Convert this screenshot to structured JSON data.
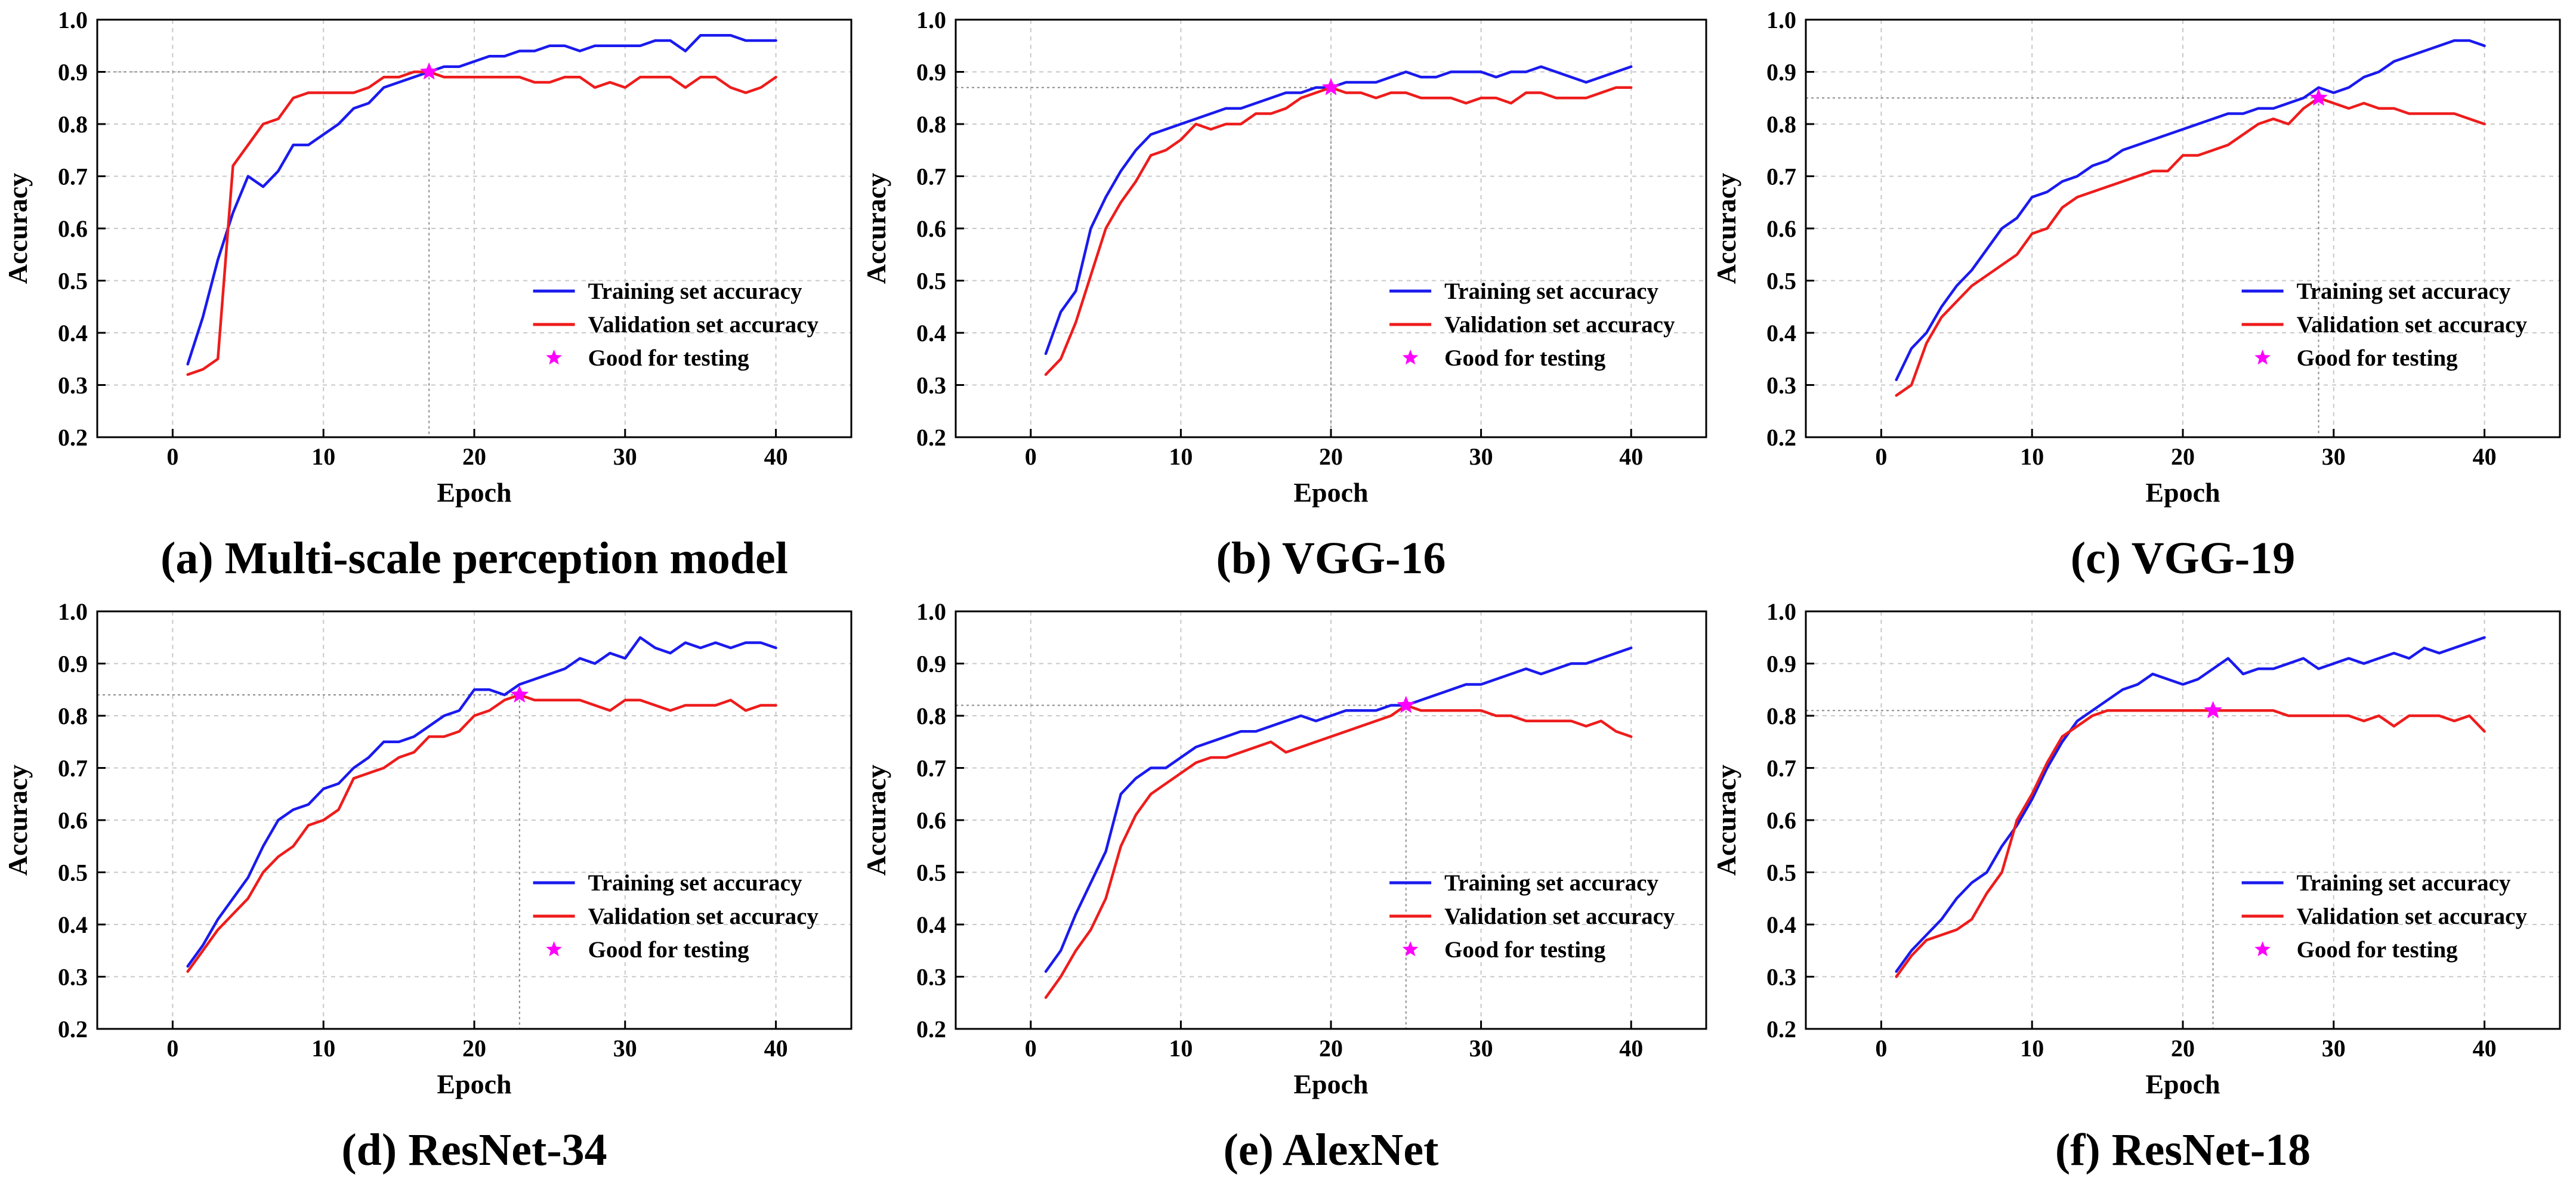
{
  "colors": {
    "training": "#1a1aee",
    "validation": "#ee1c1c",
    "best": "#ff00ff"
  },
  "legend": {
    "training_label": "Training set accuracy",
    "validation_label": "Validation set accuracy",
    "best_label": "Good for testing"
  },
  "chart_data": [
    {
      "type": "line",
      "title": "(a) Multi-scale perception model",
      "xlabel": "Epoch",
      "ylabel": "Accuracy",
      "xlim": [
        -5,
        45
      ],
      "ylim": [
        0.2,
        1.0
      ],
      "xticks": [
        0,
        10,
        20,
        30,
        40
      ],
      "yticks": [
        0.2,
        0.3,
        0.4,
        0.5,
        0.6,
        0.7,
        0.8,
        0.9,
        1.0
      ],
      "grid": true,
      "legend_position": "bottom-right",
      "x": [
        1,
        2,
        3,
        4,
        5,
        6,
        7,
        8,
        9,
        10,
        11,
        12,
        13,
        14,
        15,
        16,
        17,
        18,
        19,
        20,
        21,
        22,
        23,
        24,
        25,
        26,
        27,
        28,
        29,
        30,
        31,
        32,
        33,
        34,
        35,
        36,
        37,
        38,
        39,
        40
      ],
      "series": [
        {
          "name": "Training set accuracy",
          "values": [
            0.34,
            0.43,
            0.54,
            0.63,
            0.7,
            0.68,
            0.71,
            0.76,
            0.76,
            0.78,
            0.8,
            0.83,
            0.84,
            0.87,
            0.88,
            0.89,
            0.9,
            0.91,
            0.91,
            0.92,
            0.93,
            0.93,
            0.94,
            0.94,
            0.95,
            0.95,
            0.94,
            0.95,
            0.95,
            0.95,
            0.95,
            0.96,
            0.96,
            0.94,
            0.97,
            0.97,
            0.97,
            0.96,
            0.96,
            0.96
          ]
        },
        {
          "name": "Validation set accuracy",
          "values": [
            0.32,
            0.33,
            0.35,
            0.72,
            0.76,
            0.8,
            0.81,
            0.85,
            0.86,
            0.86,
            0.86,
            0.86,
            0.87,
            0.89,
            0.89,
            0.9,
            0.9,
            0.89,
            0.89,
            0.89,
            0.89,
            0.89,
            0.89,
            0.88,
            0.88,
            0.89,
            0.89,
            0.87,
            0.88,
            0.87,
            0.89,
            0.89,
            0.89,
            0.87,
            0.89,
            0.89,
            0.87,
            0.86,
            0.87,
            0.89
          ]
        }
      ],
      "best_point": {
        "x": 17,
        "y": 0.9
      }
    },
    {
      "type": "line",
      "title": "(b) VGG-16",
      "xlabel": "Epoch",
      "ylabel": "Accuracy",
      "xlim": [
        -5,
        45
      ],
      "ylim": [
        0.2,
        1.0
      ],
      "xticks": [
        0,
        10,
        20,
        30,
        40
      ],
      "yticks": [
        0.2,
        0.3,
        0.4,
        0.5,
        0.6,
        0.7,
        0.8,
        0.9,
        1.0
      ],
      "grid": true,
      "legend_position": "bottom-right",
      "x": [
        1,
        2,
        3,
        4,
        5,
        6,
        7,
        8,
        9,
        10,
        11,
        12,
        13,
        14,
        15,
        16,
        17,
        18,
        19,
        20,
        21,
        22,
        23,
        24,
        25,
        26,
        27,
        28,
        29,
        30,
        31,
        32,
        33,
        34,
        35,
        36,
        37,
        38,
        39,
        40
      ],
      "series": [
        {
          "name": "Training set accuracy",
          "values": [
            0.36,
            0.44,
            0.48,
            0.6,
            0.66,
            0.71,
            0.75,
            0.78,
            0.79,
            0.8,
            0.81,
            0.82,
            0.83,
            0.83,
            0.84,
            0.85,
            0.86,
            0.86,
            0.87,
            0.87,
            0.88,
            0.88,
            0.88,
            0.89,
            0.9,
            0.89,
            0.89,
            0.9,
            0.9,
            0.9,
            0.89,
            0.9,
            0.9,
            0.91,
            0.9,
            0.89,
            0.88,
            0.89,
            0.9,
            0.91
          ]
        },
        {
          "name": "Validation set accuracy",
          "values": [
            0.32,
            0.35,
            0.42,
            0.51,
            0.6,
            0.65,
            0.69,
            0.74,
            0.75,
            0.77,
            0.8,
            0.79,
            0.8,
            0.8,
            0.82,
            0.82,
            0.83,
            0.85,
            0.86,
            0.87,
            0.86,
            0.86,
            0.85,
            0.86,
            0.86,
            0.85,
            0.85,
            0.85,
            0.84,
            0.85,
            0.85,
            0.84,
            0.86,
            0.86,
            0.85,
            0.85,
            0.85,
            0.86,
            0.87,
            0.87
          ]
        }
      ],
      "best_point": {
        "x": 20,
        "y": 0.87
      }
    },
    {
      "type": "line",
      "title": "(c) VGG-19",
      "xlabel": "Epoch",
      "ylabel": "Accuracy",
      "xlim": [
        -5,
        45
      ],
      "ylim": [
        0.2,
        1.0
      ],
      "xticks": [
        0,
        10,
        20,
        30,
        40
      ],
      "yticks": [
        0.2,
        0.3,
        0.4,
        0.5,
        0.6,
        0.7,
        0.8,
        0.9,
        1.0
      ],
      "grid": true,
      "legend_position": "bottom-right",
      "x": [
        1,
        2,
        3,
        4,
        5,
        6,
        7,
        8,
        9,
        10,
        11,
        12,
        13,
        14,
        15,
        16,
        17,
        18,
        19,
        20,
        21,
        22,
        23,
        24,
        25,
        26,
        27,
        28,
        29,
        30,
        31,
        32,
        33,
        34,
        35,
        36,
        37,
        38,
        39,
        40
      ],
      "series": [
        {
          "name": "Training set accuracy",
          "values": [
            0.31,
            0.37,
            0.4,
            0.45,
            0.49,
            0.52,
            0.56,
            0.6,
            0.62,
            0.66,
            0.67,
            0.69,
            0.7,
            0.72,
            0.73,
            0.75,
            0.76,
            0.77,
            0.78,
            0.79,
            0.8,
            0.81,
            0.82,
            0.82,
            0.83,
            0.83,
            0.84,
            0.85,
            0.87,
            0.86,
            0.87,
            0.89,
            0.9,
            0.92,
            0.93,
            0.94,
            0.95,
            0.96,
            0.96,
            0.95
          ]
        },
        {
          "name": "Validation set accuracy",
          "values": [
            0.28,
            0.3,
            0.38,
            0.43,
            0.46,
            0.49,
            0.51,
            0.53,
            0.55,
            0.59,
            0.6,
            0.64,
            0.66,
            0.67,
            0.68,
            0.69,
            0.7,
            0.71,
            0.71,
            0.74,
            0.74,
            0.75,
            0.76,
            0.78,
            0.8,
            0.81,
            0.8,
            0.83,
            0.85,
            0.84,
            0.83,
            0.84,
            0.83,
            0.83,
            0.82,
            0.82,
            0.82,
            0.82,
            0.81,
            0.8
          ]
        }
      ],
      "best_point": {
        "x": 29,
        "y": 0.85
      }
    },
    {
      "type": "line",
      "title": "(d) ResNet-34",
      "xlabel": "Epoch",
      "ylabel": "Accuracy",
      "xlim": [
        -5,
        45
      ],
      "ylim": [
        0.2,
        1.0
      ],
      "xticks": [
        0,
        10,
        20,
        30,
        40
      ],
      "yticks": [
        0.2,
        0.3,
        0.4,
        0.5,
        0.6,
        0.7,
        0.8,
        0.9,
        1.0
      ],
      "grid": true,
      "legend_position": "bottom-right",
      "x": [
        1,
        2,
        3,
        4,
        5,
        6,
        7,
        8,
        9,
        10,
        11,
        12,
        13,
        14,
        15,
        16,
        17,
        18,
        19,
        20,
        21,
        22,
        23,
        24,
        25,
        26,
        27,
        28,
        29,
        30,
        31,
        32,
        33,
        34,
        35,
        36,
        37,
        38,
        39,
        40
      ],
      "series": [
        {
          "name": "Training set accuracy",
          "values": [
            0.32,
            0.36,
            0.41,
            0.45,
            0.49,
            0.55,
            0.6,
            0.62,
            0.63,
            0.66,
            0.67,
            0.7,
            0.72,
            0.75,
            0.75,
            0.76,
            0.78,
            0.8,
            0.81,
            0.85,
            0.85,
            0.84,
            0.86,
            0.87,
            0.88,
            0.89,
            0.91,
            0.9,
            0.92,
            0.91,
            0.95,
            0.93,
            0.92,
            0.94,
            0.93,
            0.94,
            0.93,
            0.94,
            0.94,
            0.93
          ]
        },
        {
          "name": "Validation set accuracy",
          "values": [
            0.31,
            0.35,
            0.39,
            0.42,
            0.45,
            0.5,
            0.53,
            0.55,
            0.59,
            0.6,
            0.62,
            0.68,
            0.69,
            0.7,
            0.72,
            0.73,
            0.76,
            0.76,
            0.77,
            0.8,
            0.81,
            0.83,
            0.84,
            0.83,
            0.83,
            0.83,
            0.83,
            0.82,
            0.81,
            0.83,
            0.83,
            0.82,
            0.81,
            0.82,
            0.82,
            0.82,
            0.83,
            0.81,
            0.82,
            0.82
          ]
        }
      ],
      "best_point": {
        "x": 23,
        "y": 0.84
      }
    },
    {
      "type": "line",
      "title": "(e) AlexNet",
      "xlabel": "Epoch",
      "ylabel": "Accuracy",
      "xlim": [
        -5,
        45
      ],
      "ylim": [
        0.2,
        1.0
      ],
      "xticks": [
        0,
        10,
        20,
        30,
        40
      ],
      "yticks": [
        0.2,
        0.3,
        0.4,
        0.5,
        0.6,
        0.7,
        0.8,
        0.9,
        1.0
      ],
      "grid": true,
      "legend_position": "bottom-right",
      "x": [
        1,
        2,
        3,
        4,
        5,
        6,
        7,
        8,
        9,
        10,
        11,
        12,
        13,
        14,
        15,
        16,
        17,
        18,
        19,
        20,
        21,
        22,
        23,
        24,
        25,
        26,
        27,
        28,
        29,
        30,
        31,
        32,
        33,
        34,
        35,
        36,
        37,
        38,
        39,
        40
      ],
      "series": [
        {
          "name": "Training set accuracy",
          "values": [
            0.31,
            0.35,
            0.42,
            0.48,
            0.54,
            0.65,
            0.68,
            0.7,
            0.7,
            0.72,
            0.74,
            0.75,
            0.76,
            0.77,
            0.77,
            0.78,
            0.79,
            0.8,
            0.79,
            0.8,
            0.81,
            0.81,
            0.81,
            0.82,
            0.82,
            0.83,
            0.84,
            0.85,
            0.86,
            0.86,
            0.87,
            0.88,
            0.89,
            0.88,
            0.89,
            0.9,
            0.9,
            0.91,
            0.92,
            0.93
          ]
        },
        {
          "name": "Validation set accuracy",
          "values": [
            0.26,
            0.3,
            0.35,
            0.39,
            0.45,
            0.55,
            0.61,
            0.65,
            0.67,
            0.69,
            0.71,
            0.72,
            0.72,
            0.73,
            0.74,
            0.75,
            0.73,
            0.74,
            0.75,
            0.76,
            0.77,
            0.78,
            0.79,
            0.8,
            0.82,
            0.81,
            0.81,
            0.81,
            0.81,
            0.81,
            0.8,
            0.8,
            0.79,
            0.79,
            0.79,
            0.79,
            0.78,
            0.79,
            0.77,
            0.76
          ]
        }
      ],
      "best_point": {
        "x": 25,
        "y": 0.82
      }
    },
    {
      "type": "line",
      "title": "(f) ResNet-18",
      "xlabel": "Epoch",
      "ylabel": "Accuracy",
      "xlim": [
        -5,
        45
      ],
      "ylim": [
        0.2,
        1.0
      ],
      "xticks": [
        0,
        10,
        20,
        30,
        40
      ],
      "yticks": [
        0.2,
        0.3,
        0.4,
        0.5,
        0.6,
        0.7,
        0.8,
        0.9,
        1.0
      ],
      "grid": true,
      "legend_position": "bottom-right",
      "x": [
        1,
        2,
        3,
        4,
        5,
        6,
        7,
        8,
        9,
        10,
        11,
        12,
        13,
        14,
        15,
        16,
        17,
        18,
        19,
        20,
        21,
        22,
        23,
        24,
        25,
        26,
        27,
        28,
        29,
        30,
        31,
        32,
        33,
        34,
        35,
        36,
        37,
        38,
        39,
        40
      ],
      "series": [
        {
          "name": "Training set accuracy",
          "values": [
            0.31,
            0.35,
            0.38,
            0.41,
            0.45,
            0.48,
            0.5,
            0.55,
            0.59,
            0.64,
            0.7,
            0.75,
            0.79,
            0.81,
            0.83,
            0.85,
            0.86,
            0.88,
            0.87,
            0.86,
            0.87,
            0.89,
            0.91,
            0.88,
            0.89,
            0.89,
            0.9,
            0.91,
            0.89,
            0.9,
            0.91,
            0.9,
            0.91,
            0.92,
            0.91,
            0.93,
            0.92,
            0.93,
            0.94,
            0.95
          ]
        },
        {
          "name": "Validation set accuracy",
          "values": [
            0.3,
            0.34,
            0.37,
            0.38,
            0.39,
            0.41,
            0.46,
            0.5,
            0.6,
            0.65,
            0.71,
            0.76,
            0.78,
            0.8,
            0.81,
            0.81,
            0.81,
            0.81,
            0.81,
            0.81,
            0.81,
            0.81,
            0.81,
            0.81,
            0.81,
            0.81,
            0.8,
            0.8,
            0.8,
            0.8,
            0.8,
            0.79,
            0.8,
            0.78,
            0.8,
            0.8,
            0.8,
            0.79,
            0.8,
            0.77
          ]
        }
      ],
      "best_point": {
        "x": 22,
        "y": 0.81
      }
    }
  ]
}
